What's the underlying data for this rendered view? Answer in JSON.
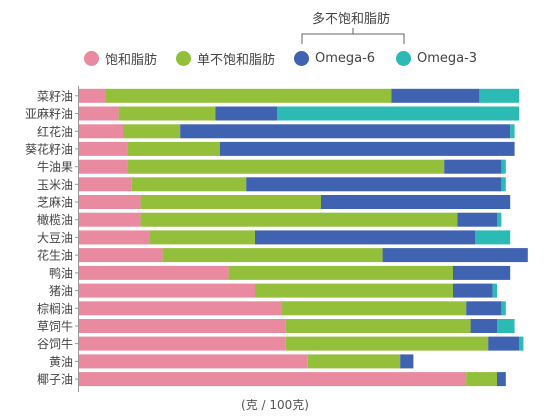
{
  "legend_group_label": "多不饱和脂肪",
  "unit_label": "(克 / 100克)",
  "chart_data": {
    "type": "bar",
    "orientation": "horizontal",
    "stacked": true,
    "xlim": [
      0,
      100
    ],
    "categories": [
      "菜籽油",
      "亚麻籽油",
      "红花油",
      "葵花籽油",
      "牛油果",
      "玉米油",
      "芝麻油",
      "橄榄油",
      "大豆油",
      "花生油",
      "鸭油",
      "猪油",
      "棕榈油",
      "草饲牛",
      "谷饲牛",
      "黄油",
      "椰子油"
    ],
    "series": [
      {
        "name": "饱和脂肪",
        "color": "#e98aa0",
        "values": [
          6,
          9,
          10,
          11,
          11,
          12,
          14,
          14,
          16,
          19,
          34,
          40,
          46,
          47,
          47,
          52,
          88
        ]
      },
      {
        "name": "单不饱和脂肪",
        "color": "#93bf3a",
        "values": [
          65,
          22,
          13,
          21,
          72,
          26,
          41,
          72,
          24,
          50,
          51,
          45,
          42,
          42,
          46,
          21,
          7
        ]
      },
      {
        "name": "Omega-6",
        "color": "#3f63b0",
        "values": [
          20,
          14,
          75,
          67,
          13,
          58,
          43,
          9,
          50,
          33,
          13,
          9,
          8,
          6,
          7,
          3,
          2
        ]
      },
      {
        "name": "Omega-3",
        "color": "#2bbbb4",
        "values": [
          9,
          55,
          1,
          0,
          1,
          1,
          0,
          1,
          8,
          0,
          0,
          1,
          1,
          4,
          1,
          0,
          0
        ]
      }
    ]
  }
}
